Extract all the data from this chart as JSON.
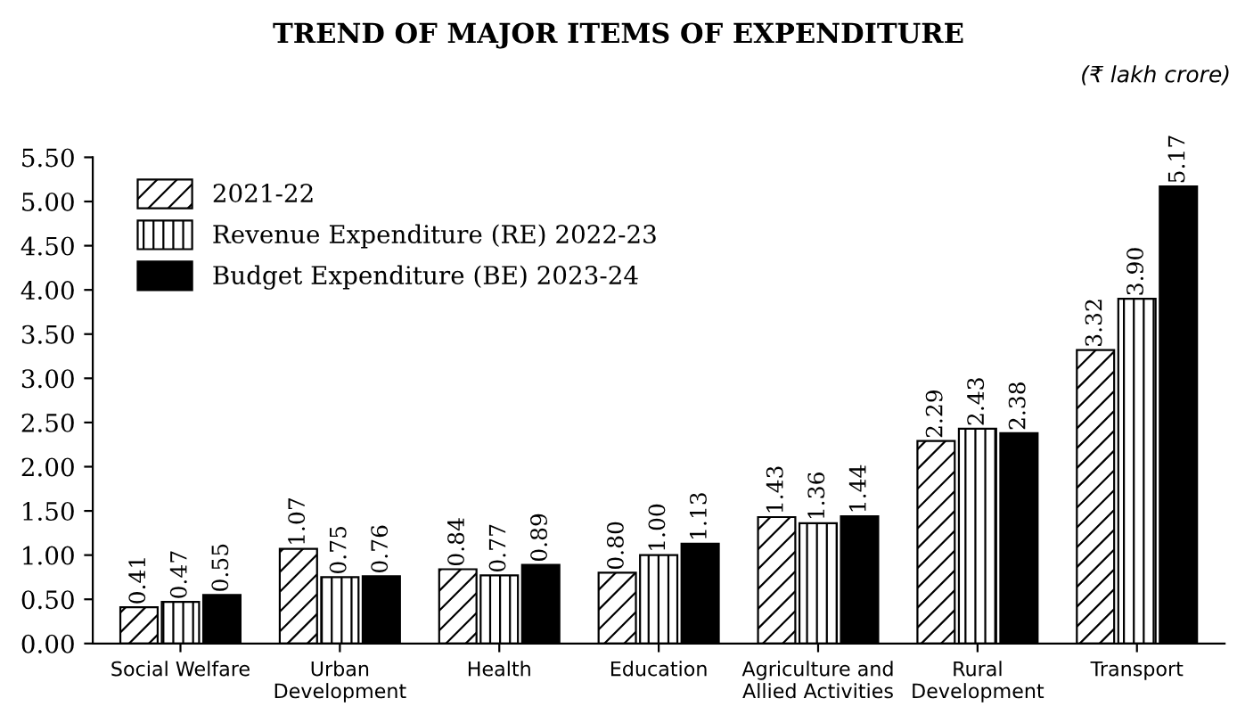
{
  "chart_data": {
    "type": "bar",
    "title": "TREND OF MAJOR ITEMS OF EXPENDITURE",
    "annotations": [
      "(₹ lakh crore)"
    ],
    "categories": [
      "Social Welfare",
      "Urban\nDevelopment",
      "Health",
      "Education",
      "Agriculture and\nAllied Activities",
      "Rural\nDevelopment",
      "Transport"
    ],
    "series": [
      {
        "name": "2021-22",
        "color": "#000000",
        "values": [
          0.41,
          1.07,
          0.84,
          0.8,
          1.43,
          2.29,
          3.32
        ],
        "value_labels": [
          "0.41",
          "1.07",
          "0.84",
          "0.80",
          "1.43",
          "2.29",
          "3.32"
        ]
      },
      {
        "name": "Revenue Expenditure (RE) 2022-23",
        "color": "#000000",
        "values": [
          0.47,
          0.75,
          0.77,
          1.0,
          1.36,
          2.43,
          3.9
        ],
        "value_labels": [
          "0.47",
          "0.75",
          "0.77",
          "1.00",
          "1.36",
          "2.43",
          "3.90"
        ]
      },
      {
        "name": "Budget Expenditure (BE) 2023-24",
        "color": "#000000",
        "values": [
          0.55,
          0.76,
          0.89,
          1.13,
          1.44,
          2.38,
          5.17
        ],
        "value_labels": [
          "0.55",
          "0.76",
          "0.89",
          "1.13",
          "1.44",
          "2.38",
          "5.17"
        ]
      }
    ],
    "ylim": [
      0,
      5.5
    ],
    "yticks": [
      {
        "value": 0,
        "label": "0.00"
      },
      {
        "value": 0.5,
        "label": "0.50"
      },
      {
        "value": 1,
        "label": "1.00"
      },
      {
        "value": 1.5,
        "label": "1.50"
      },
      {
        "value": 2,
        "label": "2.00"
      },
      {
        "value": 2.5,
        "label": "2.50"
      },
      {
        "value": 3,
        "label": "3.00"
      },
      {
        "value": 3.5,
        "label": "3.50"
      },
      {
        "value": 4,
        "label": "4.00"
      },
      {
        "value": 4.5,
        "label": "4.50"
      },
      {
        "value": 5,
        "label": "5.00"
      },
      {
        "value": 5.5,
        "label": "5.50"
      }
    ],
    "legend": "top left"
  }
}
